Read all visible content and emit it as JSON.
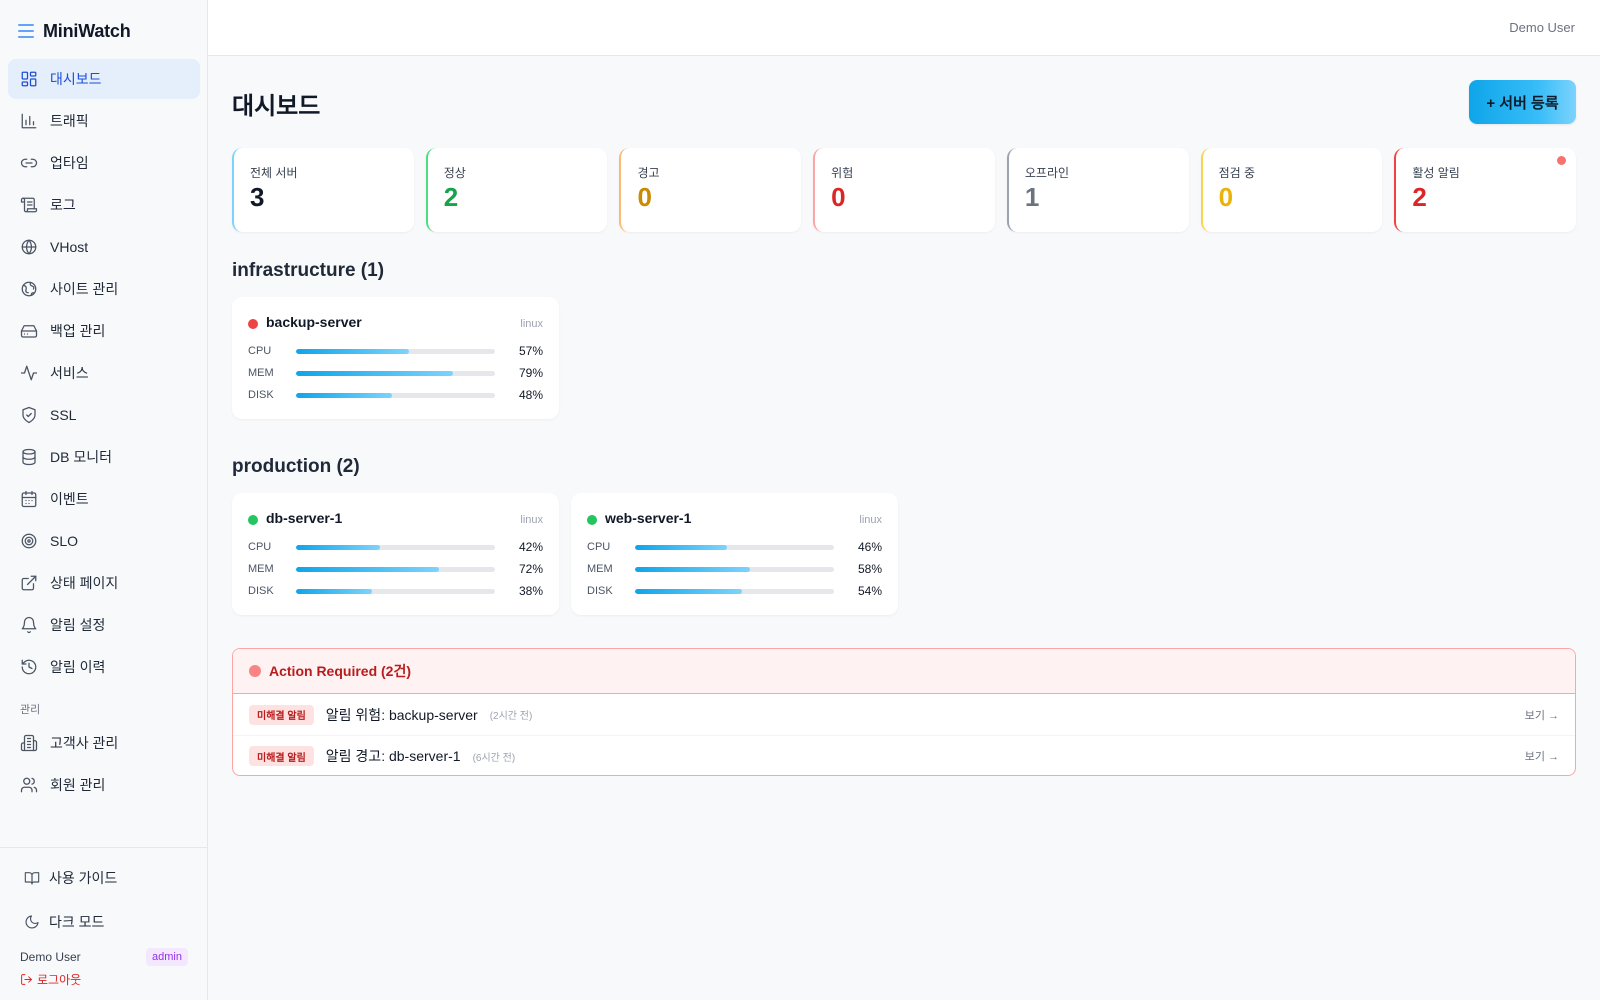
{
  "app": {
    "name": "MiniWatch"
  },
  "topbar": {
    "user": "Demo User"
  },
  "sidebar": {
    "items": [
      {
        "label": "대시보드",
        "icon": "dashboard-icon",
        "active": true
      },
      {
        "label": "트래픽",
        "icon": "bar-chart-icon"
      },
      {
        "label": "업타임",
        "icon": "link-icon"
      },
      {
        "label": "로그",
        "icon": "scroll-icon"
      },
      {
        "label": "VHost",
        "icon": "globe-icon"
      },
      {
        "label": "사이트 관리",
        "icon": "sites-globe-icon"
      },
      {
        "label": "백업 관리",
        "icon": "hard-drive-icon"
      },
      {
        "label": "서비스",
        "icon": "activity-icon"
      },
      {
        "label": "SSL",
        "icon": "shield-check-icon"
      },
      {
        "label": "DB 모니터",
        "icon": "database-icon"
      },
      {
        "label": "이벤트",
        "icon": "calendar-icon"
      },
      {
        "label": "SLO",
        "icon": "target-icon"
      },
      {
        "label": "상태 페이지",
        "icon": "external-link-icon"
      },
      {
        "label": "알림 설정",
        "icon": "bell-icon"
      },
      {
        "label": "알림 이력",
        "icon": "history-icon"
      }
    ],
    "section_label": "관리",
    "admin_items": [
      {
        "label": "고객사 관리",
        "icon": "building-icon"
      },
      {
        "label": "회원 관리",
        "icon": "users-icon"
      }
    ],
    "guide_label": "사용 가이드",
    "dark_mode_label": "다크 모드",
    "user_name": "Demo User",
    "role_badge": "admin",
    "logout_label": "로그아웃"
  },
  "page": {
    "title": "대시보드",
    "add_button": "+ 서버 등록"
  },
  "stats": [
    {
      "label": "전체 서버",
      "value": "3",
      "color": "#111827",
      "border": "#7dd3fc"
    },
    {
      "label": "정상",
      "value": "2",
      "color": "#16a34a",
      "border": "#4ade80"
    },
    {
      "label": "경고",
      "value": "0",
      "color": "#ca8a04",
      "border": "#fdba74"
    },
    {
      "label": "위험",
      "value": "0",
      "color": "#dc2626",
      "border": "#fca5a5"
    },
    {
      "label": "오프라인",
      "value": "1",
      "color": "#6b7280",
      "border": "#9ca3af"
    },
    {
      "label": "점검 중",
      "value": "0",
      "color": "#eab308",
      "border": "#fcd34d"
    },
    {
      "label": "활성 알림",
      "value": "2",
      "color": "#dc2626",
      "border": "#ef4444"
    }
  ],
  "groups": [
    {
      "title": "infrastructure (1)",
      "servers": [
        {
          "name": "backup-server",
          "os": "linux",
          "status_color": "#ef4444",
          "metrics": [
            {
              "label": "CPU",
              "value": 57,
              "text": "57%"
            },
            {
              "label": "MEM",
              "value": 79,
              "text": "79%"
            },
            {
              "label": "DISK",
              "value": 48,
              "text": "48%"
            }
          ]
        }
      ]
    },
    {
      "title": "production (2)",
      "servers": [
        {
          "name": "db-server-1",
          "os": "linux",
          "status_color": "#22c55e",
          "metrics": [
            {
              "label": "CPU",
              "value": 42,
              "text": "42%"
            },
            {
              "label": "MEM",
              "value": 72,
              "text": "72%"
            },
            {
              "label": "DISK",
              "value": 38,
              "text": "38%"
            }
          ]
        },
        {
          "name": "web-server-1",
          "os": "linux",
          "status_color": "#22c55e",
          "metrics": [
            {
              "label": "CPU",
              "value": 46,
              "text": "46%"
            },
            {
              "label": "MEM",
              "value": 58,
              "text": "58%"
            },
            {
              "label": "DISK",
              "value": 54,
              "text": "54%"
            }
          ]
        }
      ]
    }
  ],
  "action_required": {
    "title": "Action Required (2건)",
    "alerts": [
      {
        "badge": "미해결 알림",
        "text": "알림 위험: backup-server",
        "time": "(2시간 전)",
        "link": "보기 →"
      },
      {
        "badge": "미해결 알림",
        "text": "알림 경고: db-server-1",
        "time": "(6시간 전)",
        "link": "보기 →"
      }
    ]
  }
}
